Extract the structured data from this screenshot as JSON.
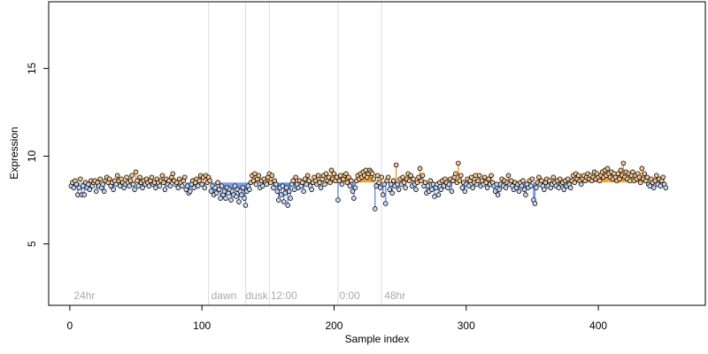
{
  "chart_data": {
    "type": "scatter",
    "title": "",
    "xlabel": "Sample index",
    "ylabel": "Expression",
    "xlim": [
      -16,
      481
    ],
    "ylim": [
      1.5,
      18.8
    ],
    "xticks": [
      0,
      100,
      200,
      300,
      400
    ],
    "yticks": [
      5,
      10,
      15
    ],
    "baseline": 8.5,
    "grid": false,
    "legend": "none",
    "colors": {
      "above_stem": "#f0a030",
      "below_stem": "#6f97e0",
      "point_stroke": "#000000",
      "point_fill_above": "#f5c896",
      "point_fill_below": "#c8d8f8",
      "divider": "#dddddd",
      "region_label": "#aaaaaa"
    },
    "dividers": [
      105,
      133,
      151,
      203,
      236
    ],
    "region_labels": [
      {
        "text": "24hr",
        "x": 3
      },
      {
        "text": "dawn",
        "x": 107
      },
      {
        "text": "dusk",
        "x": 133
      },
      {
        "text": "12:00",
        "x": 152
      },
      {
        "text": "0:00",
        "x": 204
      },
      {
        "text": "48hr",
        "x": 238
      }
    ],
    "series": [
      {
        "values": [
          8.3,
          8.5,
          8.2,
          8.6,
          8.4,
          7.8,
          8.2,
          8.7,
          7.8,
          8.3,
          7.8,
          8.5,
          8.2,
          8.4,
          8.1,
          8.6,
          8.3,
          8.5,
          8.6,
          8.0,
          8.5,
          8.3,
          8.7,
          8.2,
          8.4,
          8.0,
          8.6,
          8.8,
          8.5,
          8.7,
          8.3,
          8.5,
          8.1,
          8.6,
          8.4,
          8.9,
          8.6,
          8.3,
          8.7,
          8.5,
          8.2,
          8.4,
          8.8,
          8.5,
          8.3,
          8.6,
          8.9,
          8.4,
          8.1,
          9.1,
          8.6,
          8.3,
          8.8,
          8.5,
          8.2,
          8.6,
          8.4,
          8.7,
          8.5,
          8.3,
          8.6,
          8.8,
          8.4,
          8.5,
          8.2,
          8.7,
          8.5,
          8.3,
          8.6,
          8.9,
          8.5,
          8.1,
          8.7,
          8.4,
          8.6,
          8.3,
          8.8,
          9.0,
          8.6,
          8.4,
          8.5,
          8.2,
          8.7,
          8.5,
          8.3,
          8.6,
          8.8,
          8.1,
          8.3,
          7.9,
          8.0,
          8.4,
          8.6,
          8.2,
          8.5,
          8.7,
          8.3,
          8.6,
          8.9,
          8.4,
          8.8,
          8.2,
          8.9,
          8.5,
          8.8,
          8.6,
          8.0,
          8.3,
          7.8,
          8.2,
          7.9,
          8.5,
          8.1,
          7.6,
          8.3,
          7.8,
          8.0,
          7.6,
          8.2,
          7.9,
          8.1,
          7.5,
          8.0,
          7.8,
          8.3,
          7.7,
          8.1,
          7.4,
          8.0,
          7.8,
          8.2,
          7.6,
          7.2,
          8.0,
          8.3,
          8.1,
          8.5,
          8.9,
          8.6,
          9.0,
          8.4,
          8.7,
          8.9,
          8.2,
          8.6,
          8.3,
          8.7,
          8.5,
          8.4,
          8.8,
          9.0,
          8.5,
          8.9,
          8.2,
          8.6,
          8.4,
          8.0,
          7.5,
          8.2,
          7.8,
          8.3,
          7.4,
          7.9,
          8.2,
          7.2,
          8.0,
          7.6,
          8.4,
          8.6,
          8.1,
          8.8,
          8.4,
          8.2,
          8.6,
          8.3,
          8.5,
          8.0,
          8.7,
          8.4,
          8.9,
          8.6,
          8.3,
          8.1,
          8.5,
          8.8,
          8.6,
          8.4,
          8.9,
          8.5,
          8.2,
          8.7,
          8.9,
          8.4,
          9.0,
          8.6,
          8.8,
          8.5,
          9.2,
          8.7,
          9.0,
          8.6,
          8.8,
          7.5,
          8.6,
          8.9,
          8.4,
          8.7,
          8.9,
          9.0,
          8.5,
          8.8,
          8.3,
          8.6,
          8.0,
          7.6,
          8.2,
          8.6,
          8.9,
          8.7,
          9.0,
          8.8,
          9.1,
          8.9,
          9.2,
          8.8,
          9.0,
          9.2,
          9.1,
          9.0,
          8.7,
          7.0,
          8.3,
          8.9,
          8.5,
          8.2,
          8.8,
          7.8,
          8.4,
          7.3,
          8.6,
          8.8,
          8.1,
          8.4,
          7.9,
          8.6,
          8.3,
          9.5,
          8.4,
          8.1,
          8.7,
          8.4,
          8.8,
          8.5,
          8.2,
          8.7,
          9.0,
          8.6,
          8.9,
          8.3,
          8.7,
          8.4,
          8.1,
          8.5,
          8.8,
          9.3,
          8.6,
          8.9,
          8.3,
          8.5,
          7.9,
          8.3,
          8.0,
          8.6,
          8.1,
          8.4,
          7.7,
          8.2,
          8.4,
          7.8,
          8.5,
          8.1,
          8.6,
          8.3,
          8.7,
          8.5,
          8.2,
          8.4,
          8.7,
          8.0,
          8.6,
          8.8,
          9.0,
          8.5,
          9.6,
          8.6,
          8.9,
          8.2,
          8.5,
          8.0,
          8.4,
          8.7,
          8.3,
          8.6,
          8.8,
          8.2,
          8.5,
          8.9,
          8.4,
          8.6,
          8.9,
          8.3,
          8.6,
          8.4,
          8.8,
          8.5,
          8.2,
          8.7,
          8.4,
          8.9,
          8.5,
          8.3,
          8.0,
          8.4,
          7.8,
          8.1,
          8.4,
          8.7,
          8.3,
          8.6,
          8.2,
          8.5,
          8.9,
          8.4,
          8.6,
          8.3,
          8.1,
          8.5,
          8.2,
          8.4,
          8.0,
          8.5,
          8.3,
          8.6,
          8.1,
          7.8,
          8.4,
          8.2,
          8.6,
          8.3,
          8.7,
          7.5,
          7.3,
          8.2,
          8.5,
          8.8,
          8.4,
          8.6,
          8.3,
          8.1,
          8.5,
          8.7,
          8.3,
          8.6,
          8.2,
          8.4,
          8.8,
          8.5,
          8.3,
          8.6,
          8.2,
          8.7,
          8.4,
          8.5,
          8.1,
          8.6,
          8.3,
          8.7,
          8.4,
          8.2,
          8.6,
          8.9,
          8.5,
          9.0,
          8.7,
          8.9,
          8.6,
          8.4,
          8.7,
          8.9,
          8.6,
          8.8,
          9.0,
          8.7,
          8.9,
          8.6,
          8.8,
          9.1,
          8.7,
          9.0,
          8.8,
          8.6,
          8.9,
          9.1,
          8.8,
          9.2,
          8.9,
          9.3,
          9.0,
          8.8,
          9.1,
          8.7,
          9.0,
          8.8,
          8.6,
          9.0,
          8.7,
          9.2,
          8.9,
          9.6,
          8.8,
          9.1,
          8.7,
          9.0,
          8.6,
          8.9,
          9.1,
          8.6,
          8.9,
          8.7,
          9.0,
          8.8,
          8.5,
          9.3,
          8.7,
          9.0,
          8.6,
          8.8,
          8.4,
          8.3,
          8.7,
          8.5,
          8.2,
          8.6,
          8.9,
          8.4,
          8.7,
          8.3,
          8.6,
          8.8,
          8.4,
          8.2
        ]
      }
    ]
  }
}
